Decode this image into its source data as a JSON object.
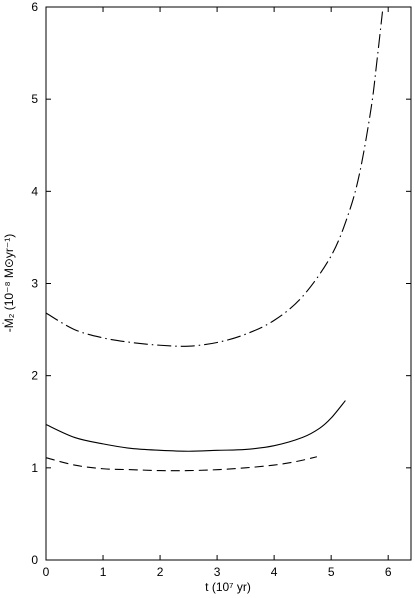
{
  "chart_data": {
    "type": "line",
    "xlabel": "t (10⁷ yr)",
    "ylabel": "-Ṁ₂ (10⁻⁸ M⊙yr⁻¹)",
    "xlim": [
      0,
      6.4
    ],
    "ylim": [
      0,
      6
    ],
    "xticks": [
      "0",
      "1",
      "2",
      "3",
      "4",
      "5",
      "6"
    ],
    "yticks": [
      "0",
      "1",
      "2",
      "3",
      "4",
      "5",
      "6"
    ],
    "grid": false,
    "series": [
      {
        "style": "dash-dot",
        "x": [
          0,
          0.5,
          1.0,
          1.5,
          2.0,
          2.5,
          3.0,
          3.5,
          4.0,
          4.5,
          5.0,
          5.3,
          5.5,
          5.7,
          5.8,
          5.9
        ],
        "y": [
          2.68,
          2.5,
          2.41,
          2.36,
          2.33,
          2.32,
          2.36,
          2.45,
          2.6,
          2.86,
          3.3,
          3.75,
          4.2,
          4.9,
          5.4,
          5.95
        ]
      },
      {
        "style": "solid",
        "x": [
          0,
          0.5,
          1.0,
          1.5,
          2.0,
          2.5,
          3.0,
          3.5,
          4.0,
          4.5,
          4.8,
          5.0,
          5.25
        ],
        "y": [
          1.47,
          1.33,
          1.26,
          1.21,
          1.19,
          1.18,
          1.19,
          1.2,
          1.24,
          1.33,
          1.43,
          1.54,
          1.73
        ]
      },
      {
        "style": "dashed",
        "x": [
          0,
          0.5,
          1.0,
          1.5,
          2.0,
          2.5,
          3.0,
          3.5,
          4.0,
          4.4,
          4.75
        ],
        "y": [
          1.11,
          1.03,
          0.99,
          0.98,
          0.97,
          0.97,
          0.98,
          1.0,
          1.03,
          1.07,
          1.12
        ]
      }
    ]
  }
}
